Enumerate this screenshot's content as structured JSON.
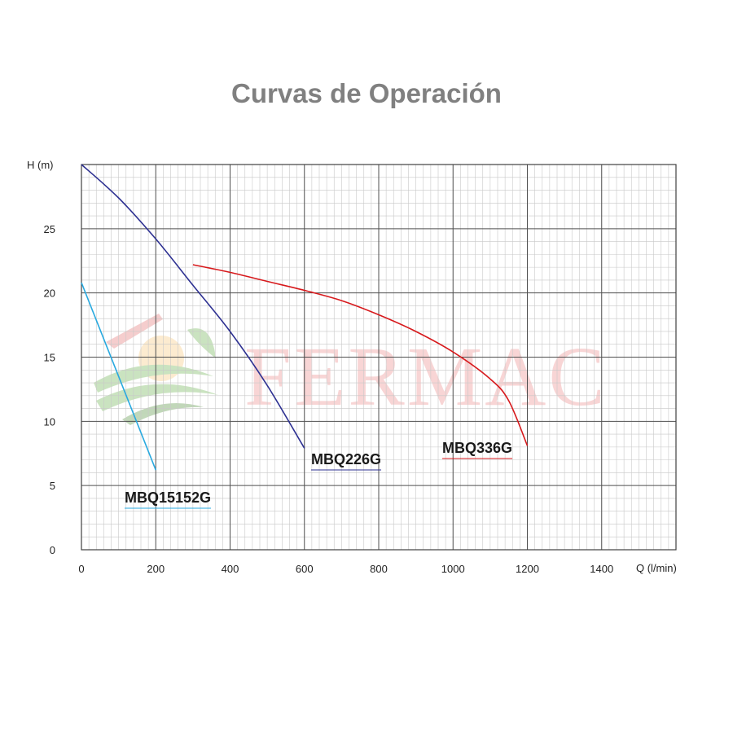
{
  "title": "Curvas de Operación",
  "watermark": {
    "text": "FERMAC"
  },
  "chart_data": {
    "type": "line",
    "xlabel": "Q (l/min)",
    "ylabel": "H (m)",
    "xlim": [
      0,
      1600
    ],
    "ylim": [
      0,
      30
    ],
    "x_ticks": [
      0,
      200,
      400,
      600,
      800,
      1000,
      1200,
      1400
    ],
    "y_ticks": [
      0,
      5,
      10,
      15,
      20,
      25
    ],
    "grid": true,
    "series": [
      {
        "name": "MBQ15152G",
        "color": "#29a9df",
        "points": [
          [
            0,
            20.8
          ],
          [
            200,
            6.2
          ]
        ]
      },
      {
        "name": "MBQ226G",
        "color": "#2e3192",
        "points": [
          [
            0,
            30.0
          ],
          [
            100,
            27.4
          ],
          [
            200,
            24.2
          ],
          [
            300,
            20.6
          ],
          [
            400,
            17.0
          ],
          [
            500,
            12.8
          ],
          [
            600,
            7.9
          ]
        ]
      },
      {
        "name": "MBQ336G",
        "color": "#d7191c",
        "points": [
          [
            300,
            22.2
          ],
          [
            400,
            21.6
          ],
          [
            500,
            20.9
          ],
          [
            600,
            20.2
          ],
          [
            700,
            19.4
          ],
          [
            800,
            18.3
          ],
          [
            900,
            17.0
          ],
          [
            1000,
            15.4
          ],
          [
            1100,
            13.3
          ],
          [
            1150,
            11.6
          ],
          [
            1200,
            8.1
          ]
        ]
      }
    ]
  }
}
